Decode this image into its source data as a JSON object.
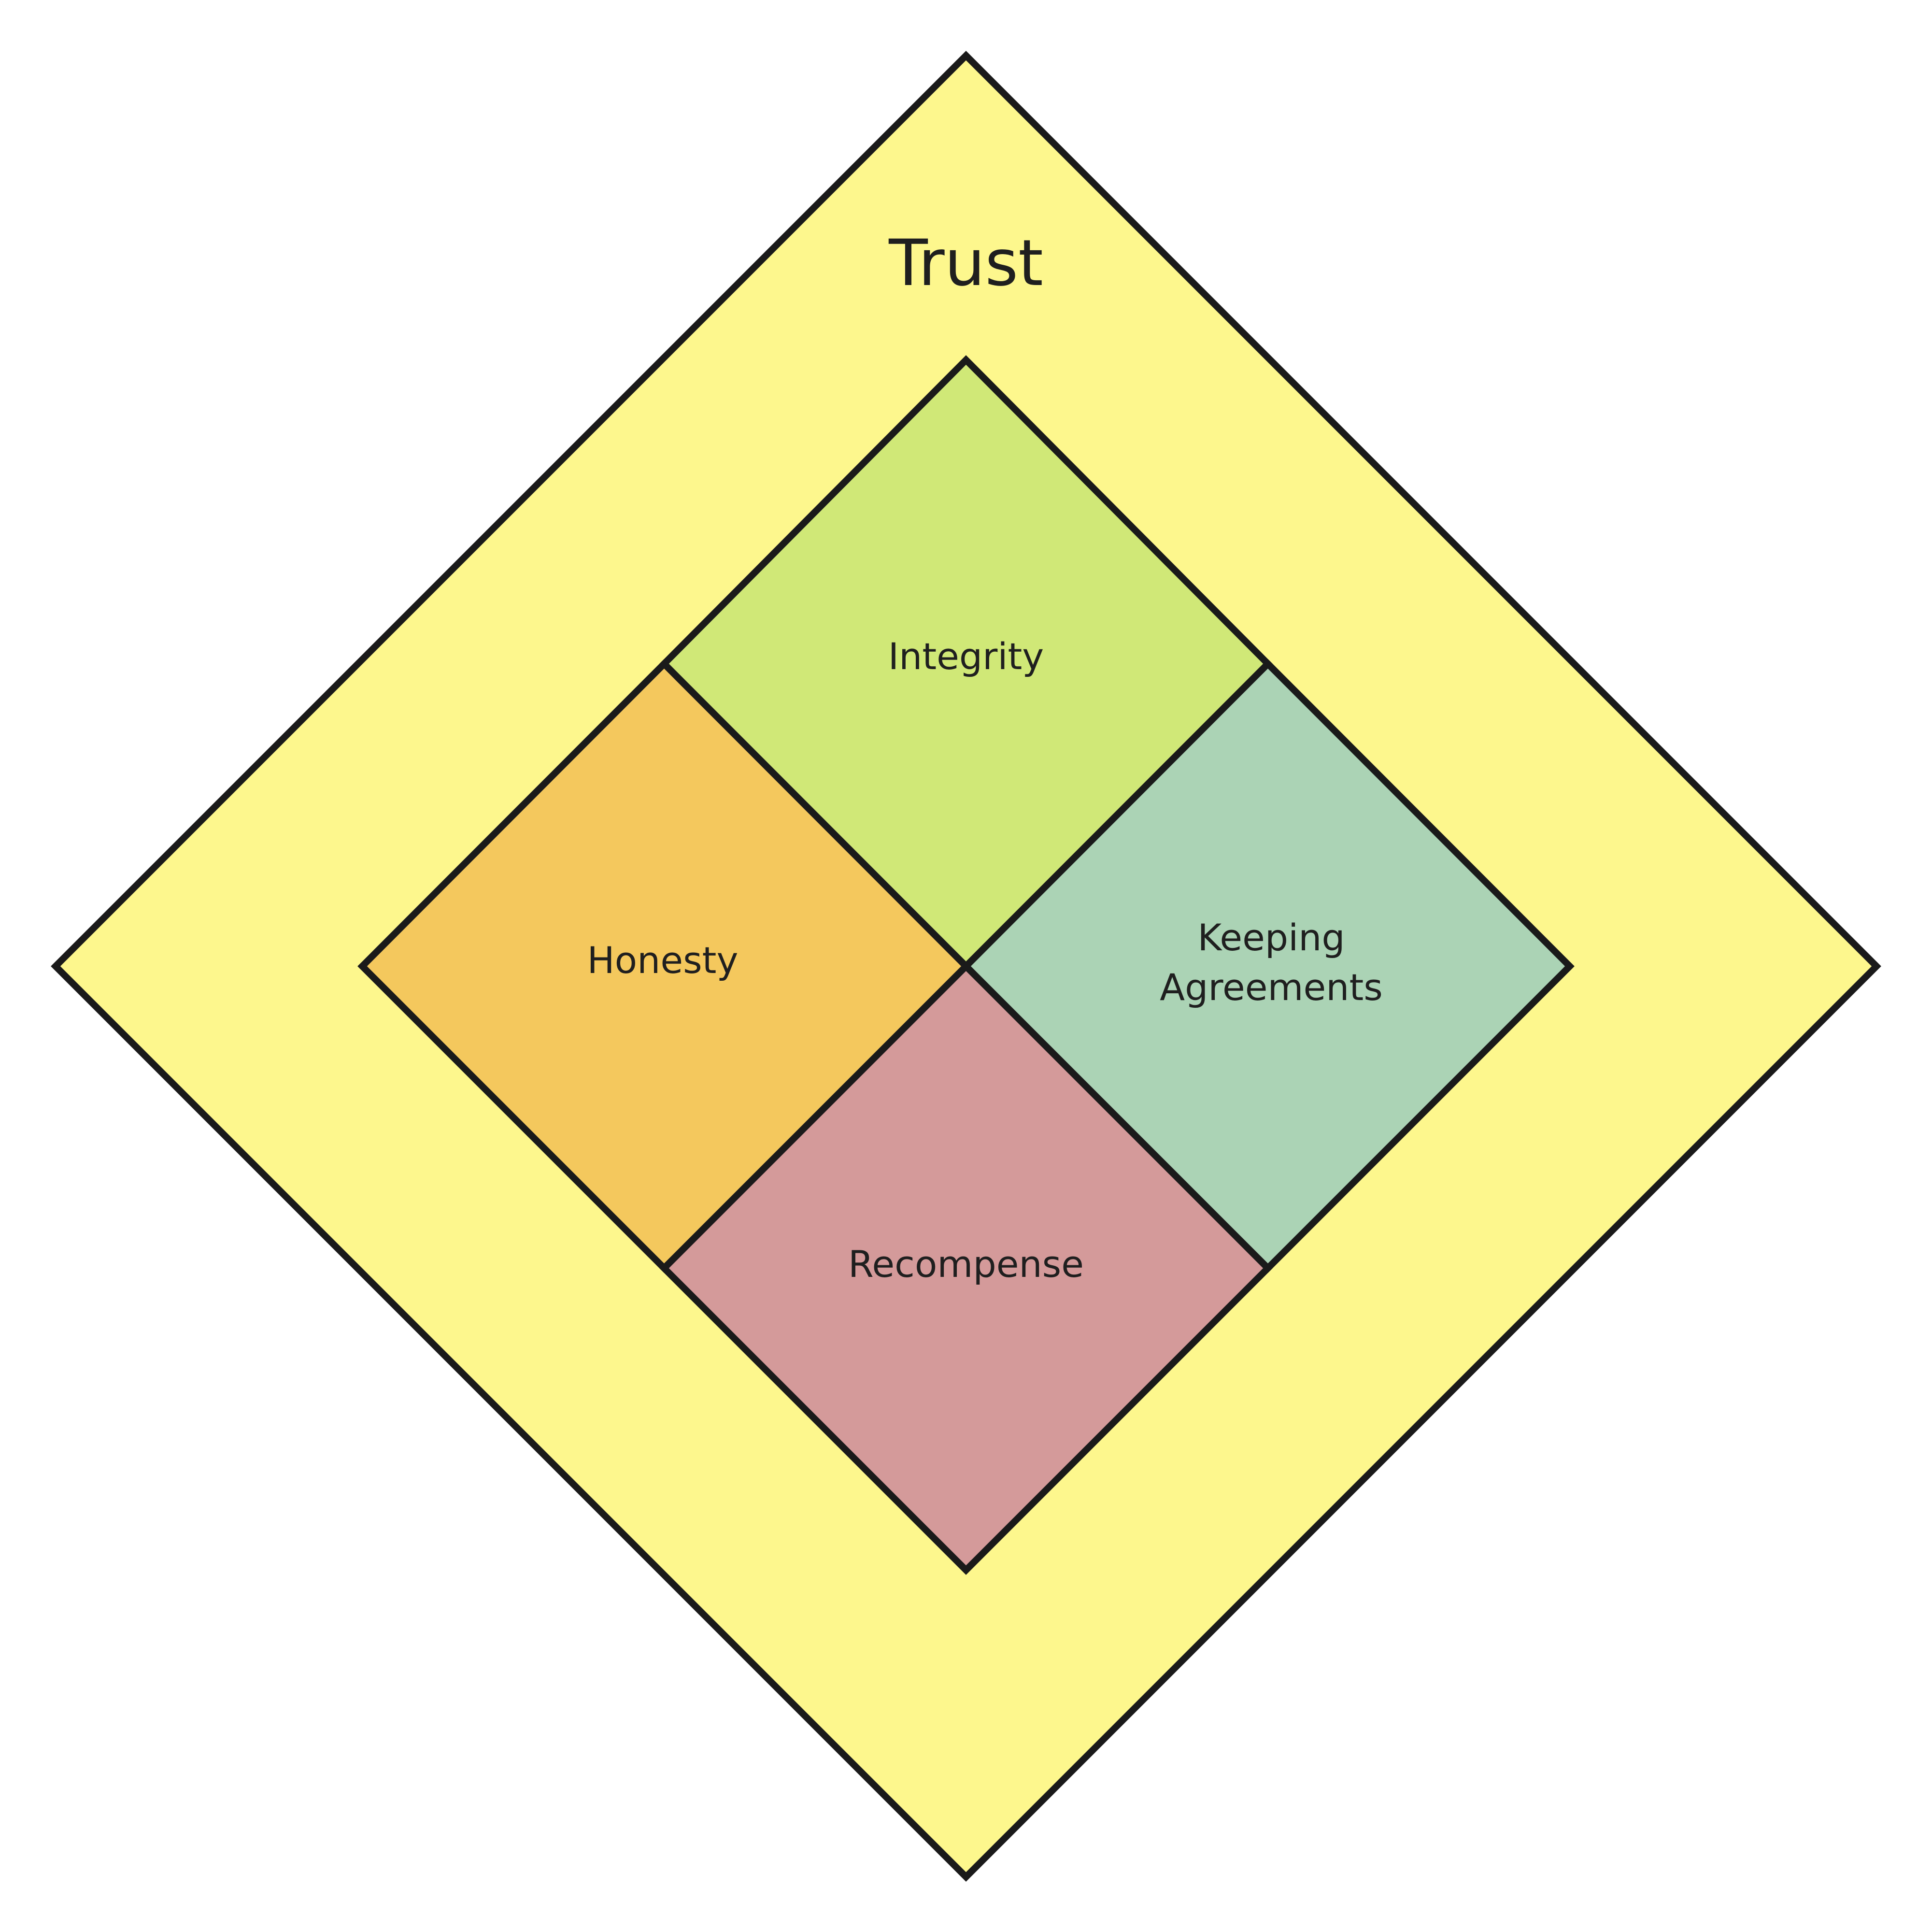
{
  "diagram": {
    "outer": {
      "label": "Trust",
      "fill": "#fdf78d",
      "stroke": "#1a1a1a"
    },
    "quadrants": {
      "integrity": {
        "label": "Integrity",
        "fill": "#d0e877",
        "stroke": "#1a1a1a"
      },
      "honesty": {
        "label": "Honesty",
        "fill": "#f4c85d",
        "stroke": "#1a1a1a"
      },
      "keeping_agreements": {
        "line1": "Keeping",
        "line2": "Agreements",
        "fill": "#abd3b5",
        "stroke": "#1a1a1a"
      },
      "recompense": {
        "label": "Recompense",
        "fill": "#d49a9a",
        "stroke": "#1a1a1a"
      }
    }
  }
}
